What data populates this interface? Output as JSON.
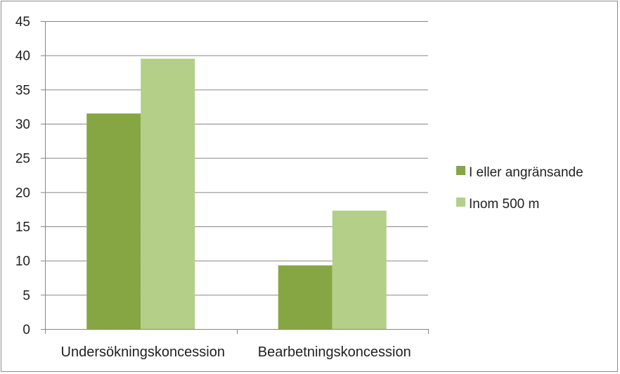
{
  "chart_data": {
    "type": "bar",
    "categories": [
      "Undersökningskoncession",
      "Bearbetningskoncession"
    ],
    "series": [
      {
        "name": "I eller angränsande",
        "values": [
          31.5,
          9.3
        ],
        "color": "#86a644"
      },
      {
        "name": "Inom 500 m",
        "values": [
          39.5,
          17.3
        ],
        "color": "#b3cf88"
      }
    ],
    "title": "",
    "xlabel": "",
    "ylabel": "",
    "ylim": [
      0,
      45
    ],
    "ytick_step": 5,
    "yticks": [
      "0",
      "5",
      "10",
      "15",
      "20",
      "25",
      "30",
      "35",
      "40",
      "45"
    ],
    "grid": true,
    "legend": "right",
    "gridline_color": "#868686",
    "axis_color": "#868686"
  }
}
